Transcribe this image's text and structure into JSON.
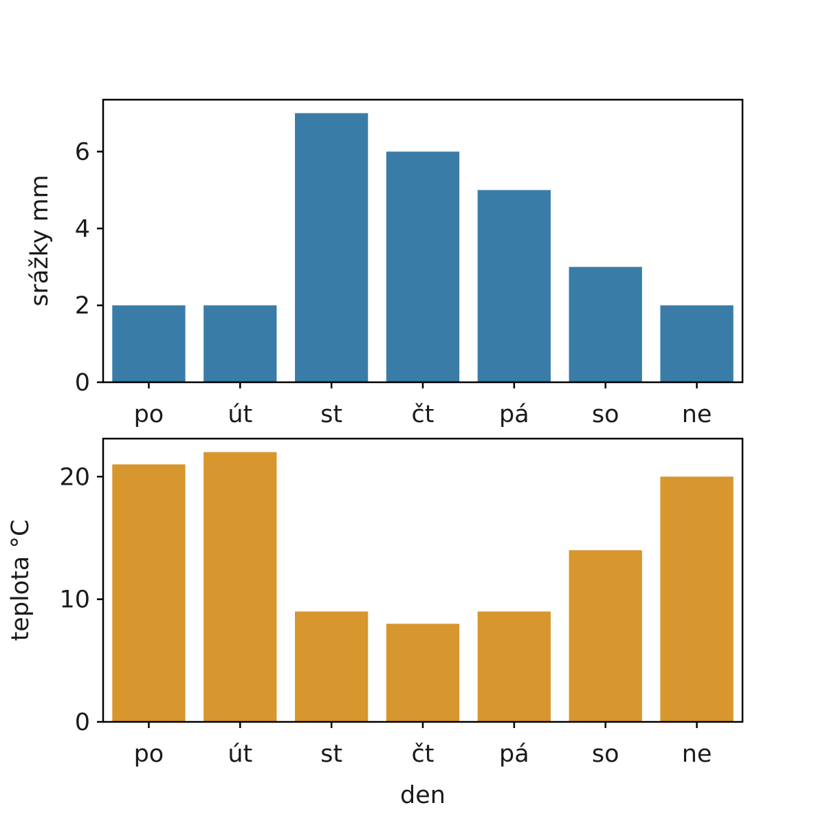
{
  "chart_data": [
    {
      "type": "bar",
      "categories": [
        "po",
        "út",
        "st",
        "čt",
        "pá",
        "so",
        "ne"
      ],
      "values": [
        2,
        2,
        7,
        6,
        5,
        3,
        2
      ],
      "title": "",
      "xlabel": "",
      "ylabel": "srážky mm",
      "ylim": [
        0,
        7.35
      ],
      "yticks": [
        0,
        2,
        4,
        6
      ],
      "color": "#3a7ca8",
      "grid": false,
      "legend": "none"
    },
    {
      "type": "bar",
      "categories": [
        "po",
        "út",
        "st",
        "čt",
        "pá",
        "so",
        "ne"
      ],
      "values": [
        21,
        22,
        9,
        8,
        9,
        14,
        20
      ],
      "title": "",
      "xlabel": "den",
      "ylabel": "teplota °C",
      "ylim": [
        0,
        23.1
      ],
      "yticks": [
        0,
        10,
        20
      ],
      "color": "#d7962e",
      "grid": false,
      "legend": "none"
    }
  ]
}
